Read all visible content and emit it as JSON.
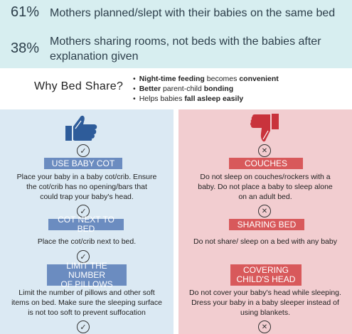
{
  "stats": [
    {
      "pct": "61%",
      "text": "Mothers planned/slept with their babies on the same bed"
    },
    {
      "pct": "38%",
      "text_line1": "Mothers sharing rooms, not beds with the babies after",
      "text_line2": "explanation given"
    }
  ],
  "why": {
    "title": "Why Bed Share?",
    "bullets": [
      {
        "bold": "Night-time feeding",
        "rest1": " becomes ",
        "bold2": "convenient"
      },
      {
        "bold": "Better",
        "rest1": " parent-child ",
        "bold2": "bonding"
      },
      {
        "pre": "Helps babies ",
        "bold": "fall asleep easily"
      }
    ]
  },
  "do": {
    "icon": "thumbs-up-icon",
    "items": [
      {
        "title": "USE BABY COT",
        "desc": [
          "Place your baby in a baby cot/crib. Ensure",
          "the cot/crib has no opening/bars that",
          "could trap your baby's head."
        ]
      },
      {
        "title": "COT NEXT TO BED",
        "desc": [
          "Place the cot/crib next to bed."
        ]
      },
      {
        "title_line1": "LIMIT THE NUMBER",
        "title_line2": "OF PILLOWS",
        "desc": [
          "Limit the number of pillows and other soft",
          "items on bed. Make sure the sleeping surface",
          "is not too soft to prevent suffocation"
        ]
      }
    ]
  },
  "dont": {
    "icon": "thumbs-down-icon",
    "items": [
      {
        "title": "COUCHES",
        "desc": [
          "Do not sleep on couches/rockers with a",
          "baby. Do not place a baby to sleep alone",
          "on an adult bed."
        ]
      },
      {
        "title": "SHARING BED",
        "desc": [
          "Do not share/ sleep on a bed with any baby"
        ]
      },
      {
        "title_line1": "COVERING",
        "title_line2": "CHILD'S HEAD",
        "desc": [
          "Do not cover your baby's head while sleeping.",
          "Dress your baby in a baby sleeper instead of",
          "using blankets."
        ]
      }
    ]
  },
  "colors": {
    "top_band": "#d7eef0",
    "do_panel": "#dbe9f3",
    "dont_panel": "#f2cdd0",
    "do_pill": "#6b8cc0",
    "dont_pill": "#d8595b",
    "thumb_up": "#2e5c9a",
    "thumb_down": "#c9333c"
  }
}
